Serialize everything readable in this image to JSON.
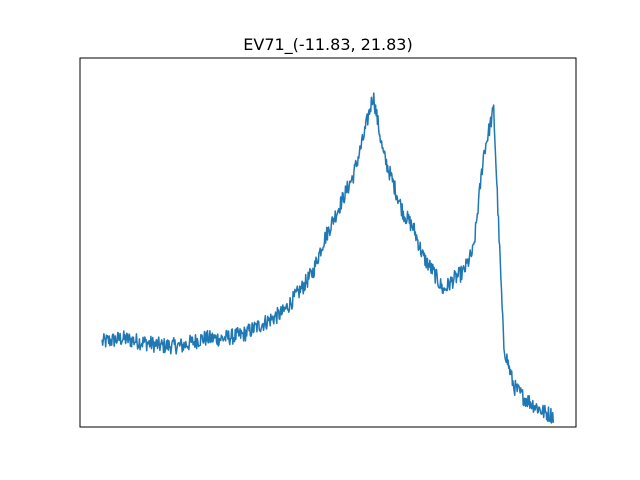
{
  "chart_data": {
    "type": "line",
    "title": "EV71_(-11.83, 21.83)",
    "xlabel": "",
    "ylabel": "",
    "x_ticks_visible": false,
    "y_ticks_visible": false,
    "grid": false,
    "legend": "none",
    "series": [
      {
        "color": "#1f77b4",
        "x": [
          0,
          20,
          40,
          60,
          80,
          100,
          120,
          140,
          160,
          180,
          200,
          210,
          220,
          230,
          240,
          250,
          260,
          270,
          280,
          290,
          300,
          310,
          320,
          330,
          340,
          350,
          360,
          370,
          380,
          390,
          400,
          410,
          420,
          430,
          440,
          450
        ],
        "y": [
          0.23,
          0.24,
          0.23,
          0.22,
          0.22,
          0.24,
          0.24,
          0.25,
          0.28,
          0.31,
          0.38,
          0.42,
          0.5,
          0.56,
          0.62,
          0.68,
          0.78,
          0.9,
          0.74,
          0.66,
          0.58,
          0.54,
          0.46,
          0.42,
          0.37,
          0.4,
          0.42,
          0.48,
          0.74,
          0.86,
          0.22,
          0.11,
          0.08,
          0.06,
          0.04,
          0.03
        ],
        "noise": 0.022
      }
    ],
    "xlim": [
      -22,
      472
    ],
    "ylim": [
      0,
      1
    ]
  }
}
